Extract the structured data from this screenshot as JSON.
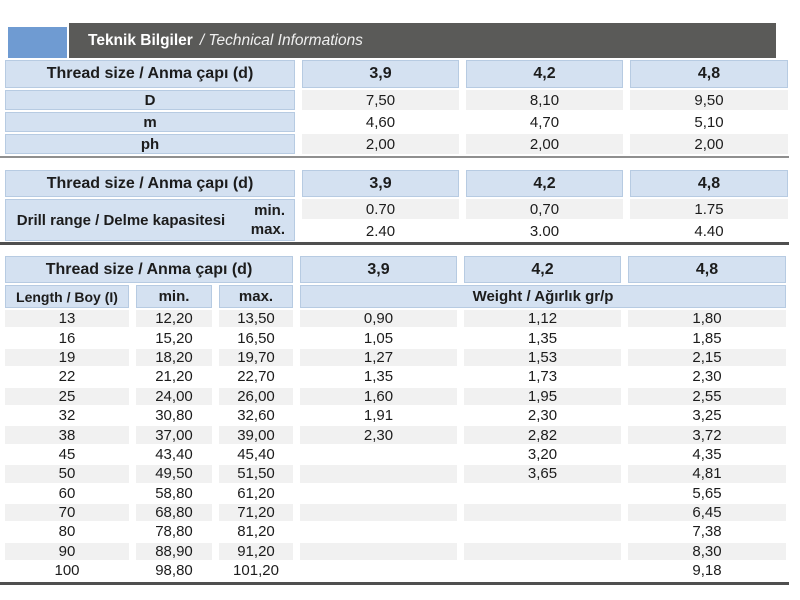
{
  "header": {
    "title_bold": "Teknik Bilgiler",
    "title_italic": "/ Technical Informations"
  },
  "colors": {
    "accent_blue": "#6F9BD2",
    "header_bar_gray": "#5A5A58",
    "header_cell_blue": "#D4E1F1",
    "stripe_gray": "#F1F1F1",
    "rule_dark": "#4F4F4F",
    "text": "#1C1C1C"
  },
  "table1": {
    "header_label": "Thread size / Anma çapı (d)",
    "sizes": [
      "3,9",
      "4,2",
      "4,8"
    ],
    "rows": [
      {
        "label": "D",
        "values": [
          "7,50",
          "8,10",
          "9,50"
        ]
      },
      {
        "label": "m",
        "values": [
          "4,60",
          "4,70",
          "5,10"
        ]
      },
      {
        "label": "ph",
        "values": [
          "2,00",
          "2,00",
          "2,00"
        ]
      }
    ]
  },
  "table2": {
    "header_label": "Thread size / Anma çapı (d)",
    "sizes": [
      "3,9",
      "4,2",
      "4,8"
    ],
    "row_label": "Drill range / Delme kapasitesi",
    "min_label": "min.",
    "max_label": "max.",
    "min_values": [
      "0.70",
      "0,70",
      "1.75"
    ],
    "max_values": [
      "2.40",
      "3.00",
      "4.40"
    ]
  },
  "table3": {
    "header_label": "Thread size / Anma çapı (d)",
    "sizes": [
      "3,9",
      "4,2",
      "4,8"
    ],
    "length_label": "Length / Boy (I)",
    "min_label": "min.",
    "max_label": "max.",
    "weight_label": "Weight / Ağırlık gr/p",
    "rows": [
      {
        "length": "13",
        "min": "12,20",
        "max": "13,50",
        "w": [
          "0,90",
          "1,12",
          "1,80"
        ]
      },
      {
        "length": "16",
        "min": "15,20",
        "max": "16,50",
        "w": [
          "1,05",
          "1,35",
          "1,85"
        ]
      },
      {
        "length": "19",
        "min": "18,20",
        "max": "19,70",
        "w": [
          "1,27",
          "1,53",
          "2,15"
        ]
      },
      {
        "length": "22",
        "min": "21,20",
        "max": "22,70",
        "w": [
          "1,35",
          "1,73",
          "2,30"
        ]
      },
      {
        "length": "25",
        "min": "24,00",
        "max": "26,00",
        "w": [
          "1,60",
          "1,95",
          "2,55"
        ]
      },
      {
        "length": "32",
        "min": "30,80",
        "max": "32,60",
        "w": [
          "1,91",
          "2,30",
          "3,25"
        ]
      },
      {
        "length": "38",
        "min": "37,00",
        "max": "39,00",
        "w": [
          "2,30",
          "2,82",
          "3,72"
        ]
      },
      {
        "length": "45",
        "min": "43,40",
        "max": "45,40",
        "w": [
          "",
          "3,20",
          "4,35"
        ]
      },
      {
        "length": "50",
        "min": "49,50",
        "max": "51,50",
        "w": [
          "",
          "3,65",
          "4,81"
        ]
      },
      {
        "length": "60",
        "min": "58,80",
        "max": "61,20",
        "w": [
          "",
          "",
          "5,65"
        ]
      },
      {
        "length": "70",
        "min": "68,80",
        "max": "71,20",
        "w": [
          "",
          "",
          "6,45"
        ]
      },
      {
        "length": "80",
        "min": "78,80",
        "max": "81,20",
        "w": [
          "",
          "",
          "7,38"
        ]
      },
      {
        "length": "90",
        "min": "88,90",
        "max": "91,20",
        "w": [
          "",
          "",
          "8,30"
        ]
      },
      {
        "length": "100",
        "min": "98,80",
        "max": "101,20",
        "w": [
          "",
          "",
          "9,18"
        ]
      }
    ]
  }
}
